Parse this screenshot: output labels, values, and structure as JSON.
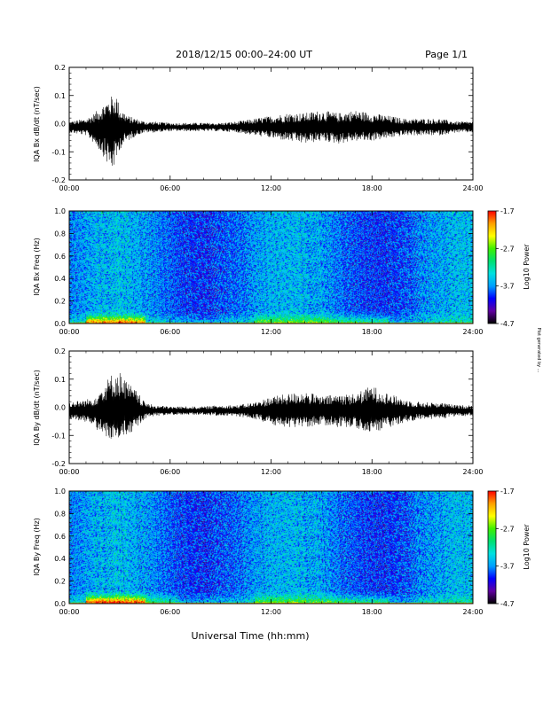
{
  "header": {
    "title": "2018/12/15   00:00–24:00 UT",
    "page": "Page 1/1",
    "side_note": "Plot generated by ..."
  },
  "footer": {
    "xlabel": "Universal Time (hh:mm)"
  },
  "colorbar": {
    "label": "Log10 Power",
    "ticks": [
      "-1.7",
      "-2.7",
      "-3.7",
      "-4.7"
    ],
    "range": [
      -4.7,
      -1.7
    ],
    "colors": [
      "#000000",
      "#6000a0",
      "#0000ff",
      "#00a0ff",
      "#00e0e0",
      "#00e070",
      "#40f000",
      "#ffff00",
      "#ffa000",
      "#ff0000"
    ]
  },
  "chart_data": [
    {
      "type": "line",
      "ylabel": "IQA Bx dB/dt (nT/sec)",
      "xlim": [
        "00:00",
        "24:00"
      ],
      "ylim": [
        -0.2,
        0.2
      ],
      "x_ticks": [
        "00:00",
        "06:00",
        "12:00",
        "18:00",
        "24:00"
      ],
      "y_ticks": [
        "0.2",
        "0.1",
        "0.0",
        "-0.1",
        "-0.2"
      ],
      "series": [
        {
          "x_hours": [
            0,
            1,
            1.5,
            2,
            2.5,
            2.8,
            3,
            3.5,
            4,
            4.5,
            5,
            6,
            7,
            8,
            9,
            10,
            11,
            12,
            13,
            14,
            15,
            16,
            17,
            18,
            19,
            20,
            21,
            22,
            23,
            24
          ],
          "y_max": [
            0.02,
            0.03,
            0.05,
            0.08,
            0.11,
            0.12,
            0.07,
            0.04,
            0.03,
            0.02,
            0.02,
            0.015,
            0.015,
            0.015,
            0.015,
            0.02,
            0.03,
            0.04,
            0.05,
            0.05,
            0.06,
            0.05,
            0.06,
            0.05,
            0.04,
            0.03,
            0.03,
            0.03,
            0.02,
            0.02
          ],
          "y_min": [
            -0.02,
            -0.03,
            -0.06,
            -0.1,
            -0.16,
            -0.13,
            -0.08,
            -0.05,
            -0.03,
            -0.02,
            -0.02,
            -0.015,
            -0.015,
            -0.015,
            -0.015,
            -0.02,
            -0.03,
            -0.04,
            -0.05,
            -0.06,
            -0.05,
            -0.06,
            -0.05,
            -0.05,
            -0.04,
            -0.03,
            -0.03,
            -0.03,
            -0.02,
            -0.02
          ]
        }
      ]
    },
    {
      "type": "heatmap",
      "ylabel": "IQA Bx Freq (Hz)",
      "xlim": [
        "00:00",
        "24:00"
      ],
      "ylim": [
        0.0,
        1.0
      ],
      "x_ticks": [
        "00:00",
        "06:00",
        "12:00",
        "18:00",
        "24:00"
      ],
      "y_ticks": [
        "1.0",
        "0.8",
        "0.6",
        "0.4",
        "0.2",
        "0.0"
      ],
      "value_range": [
        -4.7,
        -1.7
      ]
    },
    {
      "type": "line",
      "ylabel": "IQA By dB/dt (nT/sec)",
      "xlim": [
        "00:00",
        "24:00"
      ],
      "ylim": [
        -0.2,
        0.2
      ],
      "x_ticks": [
        "00:00",
        "06:00",
        "12:00",
        "18:00",
        "24:00"
      ],
      "y_ticks": [
        "0.2",
        "0.1",
        "0.0",
        "-0.1",
        "-0.2"
      ],
      "series": [
        {
          "x_hours": [
            0,
            1,
            1.5,
            2,
            2.5,
            3,
            3.5,
            4,
            4.5,
            5,
            6,
            7,
            8,
            9,
            10,
            11,
            12,
            13,
            14,
            15,
            16,
            17,
            18,
            19,
            20,
            21,
            22,
            23,
            24
          ],
          "y_max": [
            0.03,
            0.04,
            0.05,
            0.09,
            0.13,
            0.14,
            0.1,
            0.07,
            0.03,
            0.02,
            0.015,
            0.015,
            0.015,
            0.02,
            0.02,
            0.03,
            0.05,
            0.06,
            0.07,
            0.05,
            0.06,
            0.06,
            0.09,
            0.06,
            0.04,
            0.03,
            0.03,
            0.02,
            0.02
          ],
          "y_min": [
            -0.03,
            -0.04,
            -0.06,
            -0.09,
            -0.1,
            -0.1,
            -0.09,
            -0.06,
            -0.03,
            -0.02,
            -0.015,
            -0.015,
            -0.015,
            -0.02,
            -0.02,
            -0.03,
            -0.05,
            -0.06,
            -0.06,
            -0.05,
            -0.06,
            -0.06,
            -0.08,
            -0.06,
            -0.04,
            -0.03,
            -0.03,
            -0.02,
            -0.02
          ]
        }
      ]
    },
    {
      "type": "heatmap",
      "ylabel": "IQA By Freq (Hz)",
      "xlim": [
        "00:00",
        "24:00"
      ],
      "ylim": [
        0.0,
        1.0
      ],
      "x_ticks": [
        "00:00",
        "06:00",
        "12:00",
        "18:00",
        "24:00"
      ],
      "y_ticks": [
        "1.0",
        "0.8",
        "0.6",
        "0.4",
        "0.2",
        "0.0"
      ],
      "value_range": [
        -4.7,
        -1.7
      ]
    }
  ]
}
